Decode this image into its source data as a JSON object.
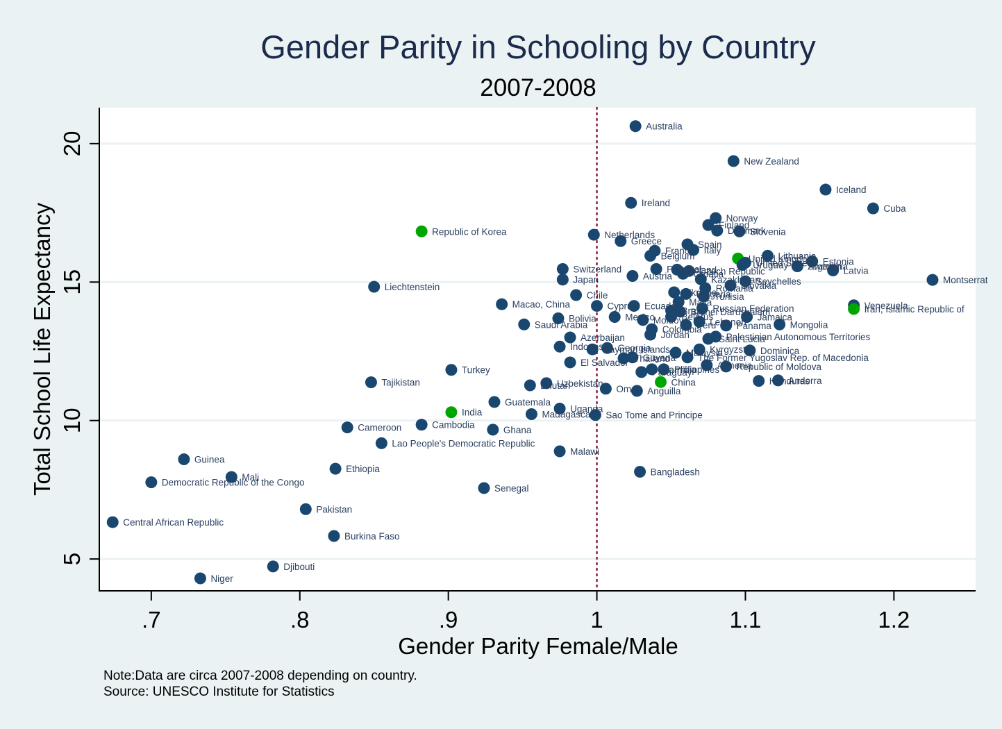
{
  "chart_data": {
    "type": "scatter",
    "title": "Gender Parity in Schooling by Country",
    "subtitle": "2007-2008",
    "xlabel": "Gender Parity Female/Male",
    "ylabel": "Total School Life Expectancy",
    "xlim": [
      0.665,
      1.255
    ],
    "ylim": [
      3.85,
      21.3
    ],
    "xticks": [
      0.7,
      0.8,
      0.9,
      1.0,
      1.1,
      1.2
    ],
    "xtick_labels": [
      ".7",
      ".8",
      ".9",
      "1",
      "1.1",
      "1.2"
    ],
    "yticks": [
      5,
      10,
      15,
      20
    ],
    "ytick_labels": [
      "5",
      "10",
      "15",
      "20"
    ],
    "grid": "horizontal",
    "reference_line": {
      "x": 1.0,
      "style": "dotted",
      "color": "#8b1a3a"
    },
    "colors": {
      "default": "#1a476f",
      "highlight": "#00a600",
      "label": "#2a3f5f"
    },
    "note_lines": [
      "Note:Data are circa 2007-2008 depending on country.",
      "Source: UNESCO Institute for Statistics"
    ],
    "points": [
      {
        "label": "Australia",
        "x": 1.026,
        "y": 20.63
      },
      {
        "label": "New Zealand",
        "x": 1.092,
        "y": 19.37
      },
      {
        "label": "Iceland",
        "x": 1.154,
        "y": 18.34
      },
      {
        "label": "Cuba",
        "x": 1.186,
        "y": 17.66
      },
      {
        "label": "Ireland",
        "x": 1.023,
        "y": 17.86
      },
      {
        "label": "Republic of Korea",
        "x": 0.882,
        "y": 16.83,
        "highlight": true
      },
      {
        "label": "Netherlands",
        "x": 0.998,
        "y": 16.71
      },
      {
        "label": "Norway",
        "x": 1.08,
        "y": 17.31
      },
      {
        "label": "Finland",
        "x": 1.075,
        "y": 17.06
      },
      {
        "label": "Denmark",
        "x": 1.081,
        "y": 16.86
      },
      {
        "label": "Slovenia",
        "x": 1.096,
        "y": 16.83
      },
      {
        "label": "Greece",
        "x": 1.016,
        "y": 16.48
      },
      {
        "label": "Spain",
        "x": 1.061,
        "y": 16.36
      },
      {
        "label": "Italy",
        "x": 1.065,
        "y": 16.16
      },
      {
        "label": "France",
        "x": 1.039,
        "y": 16.13
      },
      {
        "label": "Belgium",
        "x": 1.036,
        "y": 15.95
      },
      {
        "label": "United Kingdom",
        "x": 1.095,
        "y": 15.85,
        "highlight": true
      },
      {
        "label": "Lithuania",
        "x": 1.115,
        "y": 15.95
      },
      {
        "label": "United States",
        "x": 1.1,
        "y": 15.7
      },
      {
        "label": "Uruguay",
        "x": 1.098,
        "y": 15.62
      },
      {
        "label": "Sweden",
        "x": 1.135,
        "y": 15.57
      },
      {
        "label": "Estonia",
        "x": 1.145,
        "y": 15.75
      },
      {
        "label": "Argentina",
        "x": 1.135,
        "y": 15.57
      },
      {
        "label": "Latvia",
        "x": 1.159,
        "y": 15.42
      },
      {
        "label": "Switzerland",
        "x": 0.977,
        "y": 15.47
      },
      {
        "label": "Japan",
        "x": 0.977,
        "y": 15.09
      },
      {
        "label": "Austria",
        "x": 1.024,
        "y": 15.22
      },
      {
        "label": "Portugal",
        "x": 1.04,
        "y": 15.47
      },
      {
        "label": "Poland",
        "x": 1.054,
        "y": 15.45
      },
      {
        "label": "Czech Republic",
        "x": 1.062,
        "y": 15.4
      },
      {
        "label": "Croatia",
        "x": 1.058,
        "y": 15.3
      },
      {
        "label": "Kazakhstan",
        "x": 1.07,
        "y": 15.1
      },
      {
        "label": "Seychelles",
        "x": 1.1,
        "y": 15.03
      },
      {
        "label": "Slovakia",
        "x": 1.09,
        "y": 14.88
      },
      {
        "label": "Romania",
        "x": 1.073,
        "y": 14.78
      },
      {
        "label": "Montserrat",
        "x": 1.226,
        "y": 15.08
      },
      {
        "label": "Liechtenstein",
        "x": 0.85,
        "y": 14.83
      },
      {
        "label": "Chile",
        "x": 0.986,
        "y": 14.53
      },
      {
        "label": "Ukraine",
        "x": 1.052,
        "y": 14.63
      },
      {
        "label": "Bulgaria",
        "x": 1.06,
        "y": 14.57
      },
      {
        "label": "Tunisia",
        "x": 1.072,
        "y": 14.48
      },
      {
        "label": "Malta",
        "x": 1.055,
        "y": 14.28
      },
      {
        "label": "Macao, China",
        "x": 0.936,
        "y": 14.2
      },
      {
        "label": "Cyprus",
        "x": 1.0,
        "y": 14.14
      },
      {
        "label": "Ecuador",
        "x": 1.025,
        "y": 14.14
      },
      {
        "label": "Venezuela",
        "x": 1.173,
        "y": 14.16
      },
      {
        "label": "Iran, Islamic Republic of",
        "x": 1.173,
        "y": 14.03,
        "highlight": true
      },
      {
        "label": "Russian Federation",
        "x": 1.071,
        "y": 14.05
      },
      {
        "label": "Brazil",
        "x": 1.05,
        "y": 13.97
      },
      {
        "label": "Brunei Darussalam",
        "x": 1.056,
        "y": 13.93
      },
      {
        "label": "Bolivia",
        "x": 0.974,
        "y": 13.69
      },
      {
        "label": "Mexico",
        "x": 1.012,
        "y": 13.74
      },
      {
        "label": "Belarus",
        "x": 1.05,
        "y": 13.75
      },
      {
        "label": "Jamaica",
        "x": 1.101,
        "y": 13.74
      },
      {
        "label": "Saudi Arabia",
        "x": 0.951,
        "y": 13.47
      },
      {
        "label": "Moldova",
        "x": 1.031,
        "y": 13.63
      },
      {
        "label": "Lebanon",
        "x": 1.069,
        "y": 13.57
      },
      {
        "label": "Panama",
        "x": 1.087,
        "y": 13.43
      },
      {
        "label": "Mongolia",
        "x": 1.123,
        "y": 13.47
      },
      {
        "label": "Colombia",
        "x": 1.037,
        "y": 13.3
      },
      {
        "label": "Peru",
        "x": 1.06,
        "y": 13.45
      },
      {
        "label": "Jordan",
        "x": 1.036,
        "y": 13.1
      },
      {
        "label": "Azerbaijan",
        "x": 0.982,
        "y": 13.0
      },
      {
        "label": "Palestinian Autonomous Territories",
        "x": 1.08,
        "y": 13.03
      },
      {
        "label": "Saint Lucia",
        "x": 1.075,
        "y": 12.95
      },
      {
        "label": "Indonesia",
        "x": 0.975,
        "y": 12.67
      },
      {
        "label": "Georgia",
        "x": 1.007,
        "y": 12.62
      },
      {
        "label": "Cayman Islands",
        "x": 0.997,
        "y": 12.57
      },
      {
        "label": "Kyrgyzstan",
        "x": 1.069,
        "y": 12.57
      },
      {
        "label": "Dominica",
        "x": 1.103,
        "y": 12.53
      },
      {
        "label": "Guyana",
        "x": 1.024,
        "y": 12.28
      },
      {
        "label": "The Former Yugoslav Rep. of Macedonia",
        "x": 1.061,
        "y": 12.28
      },
      {
        "label": "Malaysia",
        "x": 1.053,
        "y": 12.45
      },
      {
        "label": "Thailand",
        "x": 1.018,
        "y": 12.25
      },
      {
        "label": "El Salvador",
        "x": 0.982,
        "y": 12.1
      },
      {
        "label": "Republic of Moldova",
        "x": 1.087,
        "y": 11.95
      },
      {
        "label": "Armenia",
        "x": 1.074,
        "y": 12.0
      },
      {
        "label": "Philippines",
        "x": 1.045,
        "y": 11.85
      },
      {
        "label": "Namibia",
        "x": 1.037,
        "y": 11.85
      },
      {
        "label": "Paraguay",
        "x": 1.03,
        "y": 11.75
      },
      {
        "label": "Turkey",
        "x": 0.902,
        "y": 11.83
      },
      {
        "label": "Tajikistan",
        "x": 0.848,
        "y": 11.38
      },
      {
        "label": "China",
        "x": 1.043,
        "y": 11.39,
        "highlight": true
      },
      {
        "label": "Honduras",
        "x": 1.109,
        "y": 11.43
      },
      {
        "label": "Andorra",
        "x": 1.122,
        "y": 11.45
      },
      {
        "label": "Uzbekistan",
        "x": 0.966,
        "y": 11.35
      },
      {
        "label": "Bhutan",
        "x": 0.955,
        "y": 11.27
      },
      {
        "label": "Oman",
        "x": 1.006,
        "y": 11.15
      },
      {
        "label": "Anguilla",
        "x": 1.027,
        "y": 11.07
      },
      {
        "label": "Guatemala",
        "x": 0.931,
        "y": 10.67
      },
      {
        "label": "Uganda",
        "x": 0.975,
        "y": 10.43
      },
      {
        "label": "India",
        "x": 0.902,
        "y": 10.3,
        "highlight": true
      },
      {
        "label": "Madagascar",
        "x": 0.956,
        "y": 10.23
      },
      {
        "label": "Sao Tome and Principe",
        "x": 0.999,
        "y": 10.2
      },
      {
        "label": "Cambodia",
        "x": 0.882,
        "y": 9.85
      },
      {
        "label": "Cameroon",
        "x": 0.832,
        "y": 9.75
      },
      {
        "label": "Ghana",
        "x": 0.93,
        "y": 9.67
      },
      {
        "label": "Lao People's Democratic Republic",
        "x": 0.855,
        "y": 9.18
      },
      {
        "label": "Malawi",
        "x": 0.975,
        "y": 8.89
      },
      {
        "label": "Guinea",
        "x": 0.722,
        "y": 8.6
      },
      {
        "label": "Ethiopia",
        "x": 0.824,
        "y": 8.26
      },
      {
        "label": "Bangladesh",
        "x": 1.029,
        "y": 8.15
      },
      {
        "label": "Mali",
        "x": 0.754,
        "y": 7.96
      },
      {
        "label": "Democratic Republic of the Congo",
        "x": 0.7,
        "y": 7.77
      },
      {
        "label": "Senegal",
        "x": 0.924,
        "y": 7.56
      },
      {
        "label": "Pakistan",
        "x": 0.804,
        "y": 6.8
      },
      {
        "label": "Central African Republic",
        "x": 0.674,
        "y": 6.33
      },
      {
        "label": "Burkina Faso",
        "x": 0.823,
        "y": 5.83
      },
      {
        "label": "Djibouti",
        "x": 0.782,
        "y": 4.73
      },
      {
        "label": "Niger",
        "x": 0.733,
        "y": 4.3
      }
    ]
  }
}
